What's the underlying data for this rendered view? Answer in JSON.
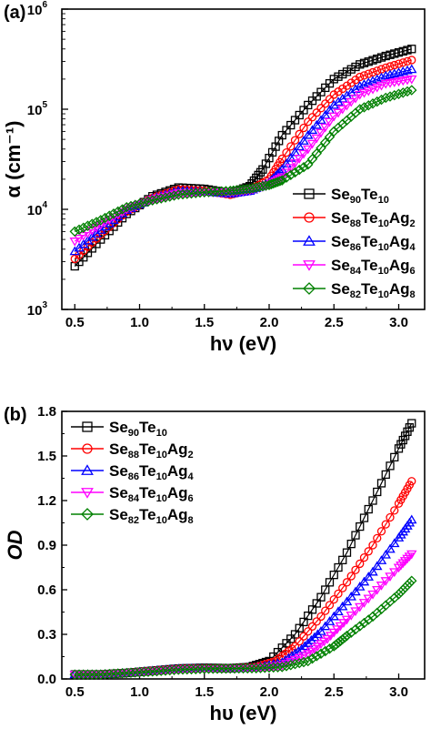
{
  "chart_data": [
    {
      "panel_label": "(a)",
      "type": "scatter",
      "xlabel": "hν (eV)",
      "ylabel": "α (cm⁻¹)",
      "xlim": [
        0.4,
        3.2
      ],
      "ylim": [
        1000,
        1000000
      ],
      "yscale": "log",
      "x_ticks": [
        "0.5",
        "1.0",
        "1.5",
        "2.0",
        "2.5",
        "3.0"
      ],
      "y_ticks": [
        {
          "base": "10",
          "exp": "3"
        },
        {
          "base": "10",
          "exp": "4"
        },
        {
          "base": "10",
          "exp": "5"
        },
        {
          "base": "10",
          "exp": "6"
        }
      ],
      "legend_position": "right",
      "series": [
        {
          "name": "Se90Te10",
          "label_parts": [
            [
              "Se",
              ""
            ],
            [
              "90",
              "sub"
            ],
            [
              "Te",
              ""
            ],
            [
              "10",
              "sub"
            ]
          ],
          "color": "#000000",
          "marker": "square",
          "x": [
            0.5,
            0.7,
            0.9,
            1.1,
            1.3,
            1.5,
            1.7,
            1.85,
            1.95,
            2.1,
            2.3,
            2.5,
            2.7,
            2.9,
            3.1
          ],
          "y": [
            2700,
            5000,
            9000,
            13500,
            16500,
            16000,
            14500,
            17000,
            25000,
            55000,
            110000,
            200000,
            280000,
            340000,
            400000
          ]
        },
        {
          "name": "Se88Te10Ag2",
          "label_parts": [
            [
              "Se",
              ""
            ],
            [
              "88",
              "sub"
            ],
            [
              "Te",
              ""
            ],
            [
              "10",
              "sub"
            ],
            [
              "Ag",
              ""
            ],
            [
              "2",
              "sub"
            ]
          ],
          "color": "#ff0000",
          "marker": "circle",
          "x": [
            0.5,
            0.7,
            0.9,
            1.1,
            1.3,
            1.5,
            1.7,
            1.85,
            2.0,
            2.1,
            2.3,
            2.5,
            2.7,
            2.9,
            3.1
          ],
          "y": [
            3200,
            5600,
            9500,
            13000,
            15800,
            15300,
            14000,
            15500,
            20000,
            32000,
            75000,
            140000,
            210000,
            260000,
            310000
          ]
        },
        {
          "name": "Se86Te10Ag4",
          "label_parts": [
            [
              "Se",
              ""
            ],
            [
              "86",
              "sub"
            ],
            [
              "Te",
              ""
            ],
            [
              "10",
              "sub"
            ],
            [
              "Ag",
              ""
            ],
            [
              "4",
              "sub"
            ]
          ],
          "color": "#0000ff",
          "marker": "triangle-up",
          "x": [
            0.5,
            0.7,
            0.9,
            1.1,
            1.3,
            1.5,
            1.7,
            1.85,
            2.0,
            2.1,
            2.3,
            2.5,
            2.7,
            2.9,
            3.1
          ],
          "y": [
            3800,
            6200,
            9800,
            12800,
            15200,
            15000,
            14300,
            15200,
            18500,
            25000,
            55000,
            110000,
            170000,
            215000,
            250000
          ]
        },
        {
          "name": "Se84Te10Ag6",
          "label_parts": [
            [
              "Se",
              ""
            ],
            [
              "84",
              "sub"
            ],
            [
              "Te",
              ""
            ],
            [
              "10",
              "sub"
            ],
            [
              "Ag",
              ""
            ],
            [
              "6",
              "sub"
            ]
          ],
          "color": "#ff00ff",
          "marker": "triangle-down",
          "x": [
            0.5,
            0.7,
            0.9,
            1.1,
            1.3,
            1.5,
            1.7,
            1.85,
            2.0,
            2.1,
            2.3,
            2.5,
            2.7,
            2.9,
            3.1
          ],
          "y": [
            4800,
            7000,
            10000,
            12500,
            14500,
            14800,
            14800,
            15500,
            17500,
            21000,
            40000,
            85000,
            140000,
            180000,
            200000
          ]
        },
        {
          "name": "Se82Te10Ag8",
          "label_parts": [
            [
              "Se",
              ""
            ],
            [
              "82",
              "sub"
            ],
            [
              "Te",
              ""
            ],
            [
              "10",
              "sub"
            ],
            [
              "Ag",
              ""
            ],
            [
              "8",
              "sub"
            ]
          ],
          "color": "#008000",
          "marker": "diamond",
          "x": [
            0.5,
            0.7,
            0.9,
            1.1,
            1.3,
            1.5,
            1.7,
            1.85,
            2.0,
            2.1,
            2.3,
            2.5,
            2.7,
            2.9,
            3.1
          ],
          "y": [
            6000,
            7800,
            10500,
            12300,
            14000,
            14800,
            15300,
            16000,
            17500,
            19500,
            28000,
            60000,
            100000,
            130000,
            155000
          ]
        }
      ]
    },
    {
      "panel_label": "(b)",
      "type": "scatter",
      "xlabel": "hυ (eV)",
      "ylabel": "OD",
      "xlim": [
        0.4,
        3.2
      ],
      "ylim": [
        0.0,
        1.8
      ],
      "x_ticks": [
        "0.5",
        "1.0",
        "1.5",
        "2.0",
        "2.5",
        "3.0"
      ],
      "y_ticks": [
        "0.0",
        "0.3",
        "0.6",
        "0.9",
        "1.2",
        "1.5",
        "1.8"
      ],
      "legend_position": "top-left",
      "series": [
        {
          "name": "Se90Te10",
          "label_parts": [
            [
              "Se",
              ""
            ],
            [
              "90",
              "sub"
            ],
            [
              "Te",
              ""
            ],
            [
              "10",
              "sub"
            ]
          ],
          "color": "#000000",
          "marker": "square",
          "x": [
            0.5,
            0.7,
            0.9,
            1.1,
            1.3,
            1.5,
            1.7,
            1.85,
            2.0,
            2.2,
            2.4,
            2.6,
            2.8,
            3.0,
            3.1
          ],
          "y": [
            0.03,
            0.03,
            0.04,
            0.055,
            0.07,
            0.075,
            0.072,
            0.08,
            0.12,
            0.3,
            0.55,
            0.85,
            1.2,
            1.55,
            1.72
          ]
        },
        {
          "name": "Se88Te10Ag2",
          "label_parts": [
            [
              "Se",
              ""
            ],
            [
              "88",
              "sub"
            ],
            [
              "Te",
              ""
            ],
            [
              "10",
              "sub"
            ],
            [
              "Ag",
              ""
            ],
            [
              "2",
              "sub"
            ]
          ],
          "color": "#ff0000",
          "marker": "circle",
          "x": [
            0.5,
            0.7,
            0.9,
            1.1,
            1.3,
            1.5,
            1.7,
            1.9,
            2.05,
            2.2,
            2.4,
            2.6,
            2.8,
            3.0,
            3.1
          ],
          "y": [
            0.03,
            0.03,
            0.04,
            0.055,
            0.068,
            0.072,
            0.07,
            0.08,
            0.12,
            0.22,
            0.42,
            0.65,
            0.9,
            1.18,
            1.33
          ]
        },
        {
          "name": "Se86Te10Ag4",
          "label_parts": [
            [
              "Se",
              ""
            ],
            [
              "86",
              "sub"
            ],
            [
              "Te",
              ""
            ],
            [
              "10",
              "sub"
            ],
            [
              "Ag",
              ""
            ],
            [
              "4",
              "sub"
            ]
          ],
          "color": "#0000ff",
          "marker": "triangle-up",
          "x": [
            0.5,
            0.7,
            0.9,
            1.1,
            1.3,
            1.5,
            1.7,
            1.9,
            2.1,
            2.25,
            2.4,
            2.6,
            2.8,
            3.0,
            3.1
          ],
          "y": [
            0.03,
            0.03,
            0.04,
            0.055,
            0.068,
            0.072,
            0.07,
            0.075,
            0.11,
            0.2,
            0.32,
            0.52,
            0.72,
            0.95,
            1.07
          ]
        },
        {
          "name": "Se84Te10Ag6",
          "label_parts": [
            [
              "Se",
              ""
            ],
            [
              "84",
              "sub"
            ],
            [
              "Te",
              ""
            ],
            [
              "10",
              "sub"
            ],
            [
              "Ag",
              ""
            ],
            [
              "6",
              "sub"
            ]
          ],
          "color": "#ff00ff",
          "marker": "triangle-down",
          "x": [
            0.5,
            0.7,
            0.9,
            1.1,
            1.3,
            1.5,
            1.7,
            1.9,
            2.1,
            2.3,
            2.45,
            2.6,
            2.8,
            3.0,
            3.1
          ],
          "y": [
            0.03,
            0.03,
            0.04,
            0.052,
            0.065,
            0.07,
            0.07,
            0.075,
            0.09,
            0.17,
            0.27,
            0.4,
            0.57,
            0.75,
            0.84
          ]
        },
        {
          "name": "Se82Te10Ag8",
          "label_parts": [
            [
              "Se",
              ""
            ],
            [
              "82",
              "sub"
            ],
            [
              "Te",
              ""
            ],
            [
              "10",
              "sub"
            ],
            [
              "Ag",
              ""
            ],
            [
              "8",
              "sub"
            ]
          ],
          "color": "#008000",
          "marker": "diamond",
          "x": [
            0.5,
            0.7,
            0.9,
            1.1,
            1.3,
            1.5,
            1.7,
            1.9,
            2.1,
            2.3,
            2.5,
            2.6,
            2.8,
            3.0,
            3.1
          ],
          "y": [
            0.03,
            0.03,
            0.04,
            0.05,
            0.062,
            0.068,
            0.07,
            0.072,
            0.08,
            0.12,
            0.22,
            0.29,
            0.42,
            0.57,
            0.66
          ]
        }
      ]
    }
  ]
}
